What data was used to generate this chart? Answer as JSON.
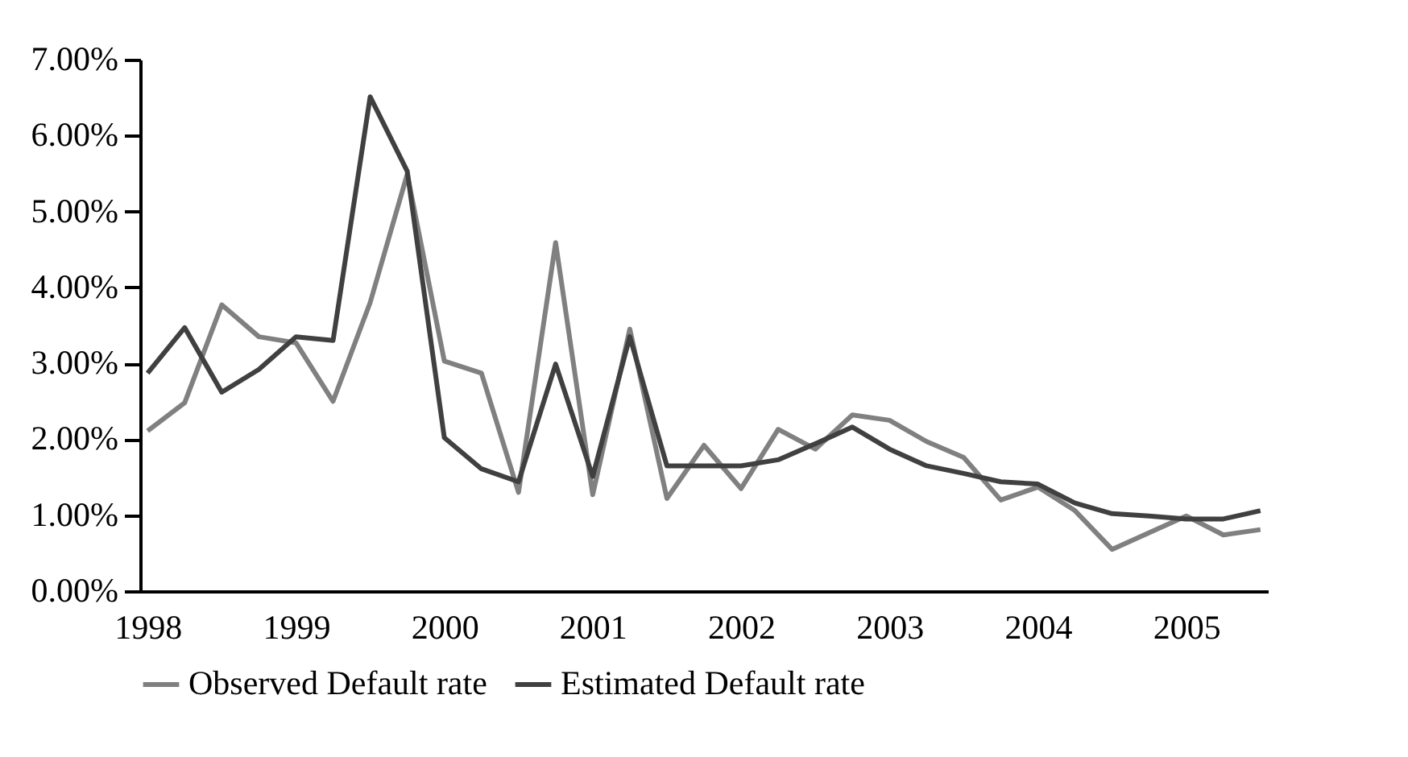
{
  "chart_data": {
    "type": "line",
    "categories": [
      "1998",
      null,
      null,
      null,
      "1999",
      null,
      null,
      null,
      "2000",
      null,
      null,
      null,
      "2001",
      null,
      null,
      null,
      "2002",
      null,
      null,
      null,
      "2003",
      null,
      null,
      null,
      "2004",
      null,
      null,
      null,
      "2005",
      null,
      null
    ],
    "series": [
      {
        "name": "Observed Default rate",
        "color": "#808080",
        "values": [
          2.11,
          2.48,
          3.77,
          3.35,
          3.27,
          2.5,
          3.8,
          5.49,
          3.03,
          2.87,
          1.3,
          4.59,
          1.27,
          3.45,
          1.22,
          1.92,
          1.35,
          2.13,
          1.87,
          2.32,
          2.25,
          1.97,
          1.76,
          1.2,
          1.37,
          1.06,
          0.55,
          0.77,
          0.99,
          0.74,
          0.81
        ]
      },
      {
        "name": "Estimated Default rate",
        "color": "#404040",
        "values": [
          2.87,
          3.47,
          2.62,
          2.92,
          3.35,
          3.3,
          6.51,
          5.53,
          2.02,
          1.61,
          1.44,
          2.99,
          1.51,
          3.35,
          1.65,
          1.65,
          1.65,
          1.73,
          1.94,
          2.16,
          1.87,
          1.65,
          1.55,
          1.44,
          1.41,
          1.16,
          1.02,
          0.99,
          0.95,
          0.95,
          1.06
        ]
      }
    ],
    "ylim": [
      0,
      7
    ],
    "yticks": [
      {
        "value": 0,
        "label": "0.00%"
      },
      {
        "value": 1,
        "label": "1.00%"
      },
      {
        "value": 2,
        "label": "2.00%"
      },
      {
        "value": 3,
        "label": "3.00%"
      },
      {
        "value": 4,
        "label": "4.00%"
      },
      {
        "value": 5,
        "label": "5.00%"
      },
      {
        "value": 6,
        "label": "6.00%"
      },
      {
        "value": 7,
        "label": "7.00%"
      }
    ],
    "grid": false,
    "legend": "bottom",
    "marker": "none",
    "line_style": "solid"
  }
}
